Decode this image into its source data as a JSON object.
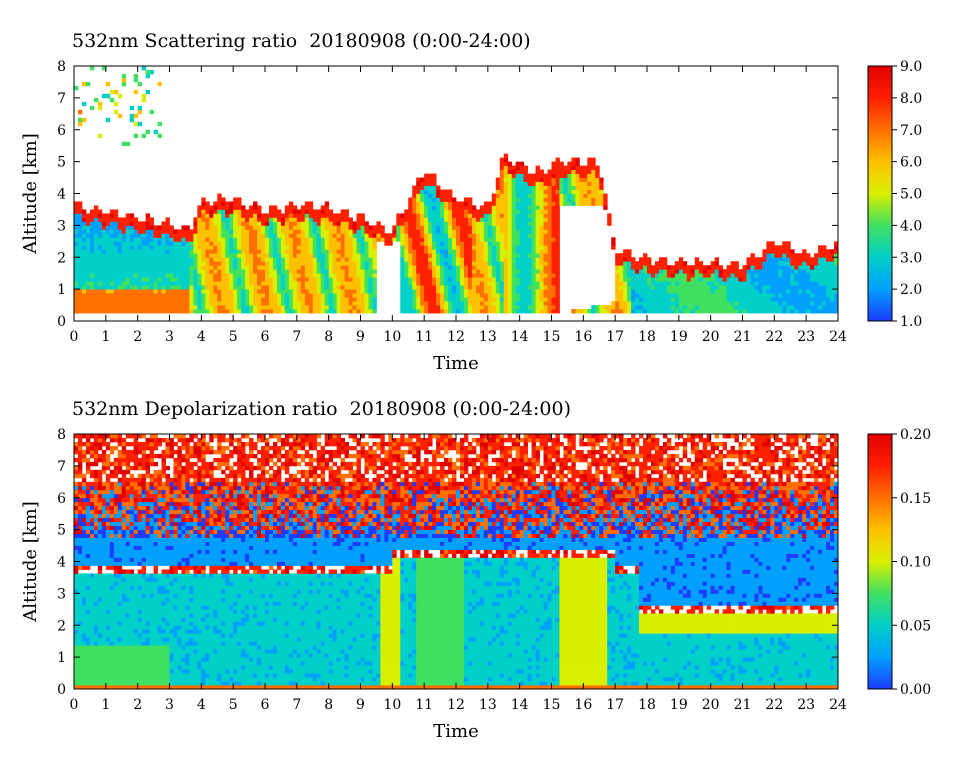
{
  "chart_data": [
    {
      "type": "heatmap",
      "title": "532nm Scattering ratio  20180908 (0:00-24:00)",
      "xlabel": "Time",
      "ylabel": "Altitude [km]",
      "xlim": [
        0,
        24
      ],
      "ylim": [
        0,
        8
      ],
      "x_ticks": [
        "0",
        "1",
        "2",
        "3",
        "4",
        "5",
        "6",
        "7",
        "8",
        "9",
        "10",
        "11",
        "12",
        "13",
        "14",
        "15",
        "16",
        "17",
        "18",
        "19",
        "20",
        "21",
        "22",
        "23",
        "24"
      ],
      "y_ticks": [
        "0",
        "1",
        "2",
        "3",
        "4",
        "5",
        "6",
        "7",
        "8"
      ],
      "colorbar": {
        "min": 1.0,
        "max": 9.0,
        "tick_labels": [
          "1.0",
          "2.0",
          "3.0",
          "4.0",
          "5.0",
          "6.0",
          "7.0",
          "8.0",
          "9.0"
        ]
      },
      "colormap": [
        "#1e3cff",
        "#00a0ff",
        "#00d0c8",
        "#40e060",
        "#d8f000",
        "#ffc000",
        "#ff7000",
        "#ff2000",
        "#e00000"
      ]
    },
    {
      "type": "heatmap",
      "title": "532nm Depolarization ratio  20180908 (0:00-24:00)",
      "xlabel": "Time",
      "ylabel": "Altitude [km]",
      "xlim": [
        0,
        24
      ],
      "ylim": [
        0,
        8
      ],
      "x_ticks": [
        "0",
        "1",
        "2",
        "3",
        "4",
        "5",
        "6",
        "7",
        "8",
        "9",
        "10",
        "11",
        "12",
        "13",
        "14",
        "15",
        "16",
        "17",
        "18",
        "19",
        "20",
        "21",
        "22",
        "23",
        "24"
      ],
      "y_ticks": [
        "0",
        "1",
        "2",
        "3",
        "4",
        "5",
        "6",
        "7",
        "8"
      ],
      "colorbar": {
        "min": 0.0,
        "max": 0.2,
        "tick_labels": [
          "0.00",
          "0.05",
          "0.10",
          "0.15",
          "0.20"
        ]
      },
      "colormap": [
        "#1e3cff",
        "#00a0ff",
        "#00d0c8",
        "#40e060",
        "#d8f000",
        "#ffc000",
        "#ff7000",
        "#ff2000",
        "#e00000"
      ]
    }
  ]
}
